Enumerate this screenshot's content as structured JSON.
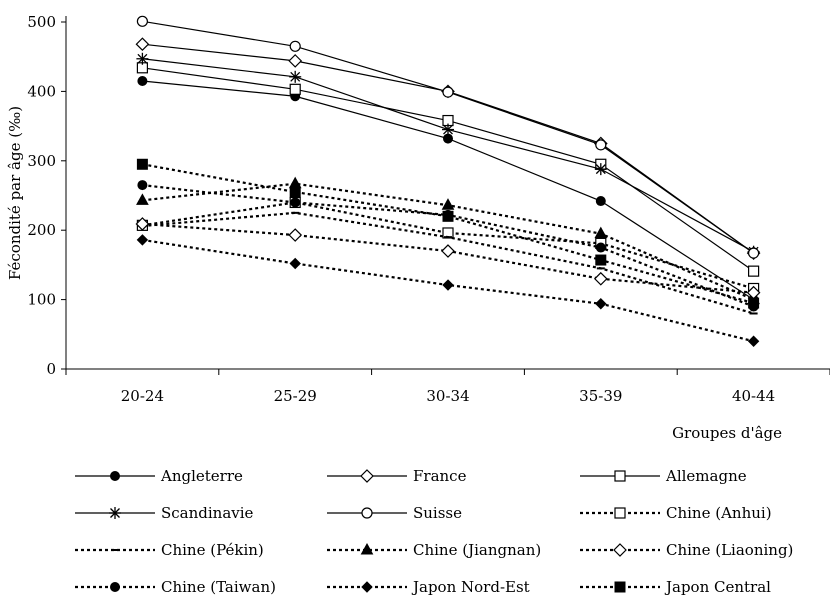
{
  "chart_data": {
    "type": "line",
    "title": "",
    "xlabel": "Groupes d'âge",
    "ylabel": "Fécondité par âge (‰)",
    "categories": [
      "20-24",
      "25-29",
      "30-34",
      "35-39",
      "40-44"
    ],
    "ylim": [
      0,
      500
    ],
    "yticks": [
      0,
      100,
      200,
      300,
      400,
      500
    ],
    "grid": false,
    "legend_position": "bottom",
    "series": [
      {
        "name": "Angleterre",
        "values": [
          415,
          393,
          332,
          242,
          100
        ],
        "line": "solid",
        "marker": "filled-circle"
      },
      {
        "name": "France",
        "values": [
          468,
          444,
          400,
          325,
          167
        ],
        "line": "solid",
        "marker": "open-diamond"
      },
      {
        "name": "Allemagne",
        "values": [
          434,
          403,
          358,
          295,
          141
        ],
        "line": "solid",
        "marker": "open-square"
      },
      {
        "name": "Scandinavie",
        "values": [
          447,
          421,
          345,
          288,
          169
        ],
        "line": "solid",
        "marker": "asterisk"
      },
      {
        "name": "Suisse",
        "values": [
          501,
          465,
          399,
          323,
          167
        ],
        "line": "solid",
        "marker": "open-circle"
      },
      {
        "name": "Chine (Anhui)",
        "values": [
          207,
          240,
          196,
          181,
          116
        ],
        "line": "dotted",
        "marker": "open-square"
      },
      {
        "name": "Chine (Pékin)",
        "values": [
          206,
          225,
          190,
          145,
          80
        ],
        "line": "dotted",
        "marker": "dash"
      },
      {
        "name": "Chine (Jiangnan)",
        "values": [
          243,
          267,
          236,
          195,
          100
        ],
        "line": "dotted",
        "marker": "filled-triangle"
      },
      {
        "name": "Chine (Liaoning)",
        "values": [
          209,
          193,
          170,
          130,
          110
        ],
        "line": "dotted",
        "marker": "open-diamond"
      },
      {
        "name": "Chine (Taiwan)",
        "values": [
          265,
          240,
          222,
          175,
          90
        ],
        "line": "dotted",
        "marker": "filled-circle"
      },
      {
        "name": "Japon Nord-Est",
        "values": [
          186,
          152,
          121,
          94,
          40
        ],
        "line": "dotted",
        "marker": "filled-diamond"
      },
      {
        "name": "Japon Central",
        "values": [
          295,
          255,
          220,
          157,
          95
        ],
        "line": "dotted",
        "marker": "filled-square"
      }
    ]
  }
}
